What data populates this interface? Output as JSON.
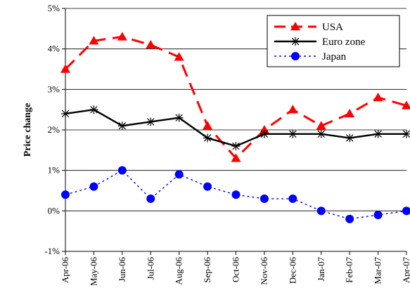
{
  "chart_data": {
    "type": "line",
    "ylabel": "Price change",
    "xlabel": "",
    "ylim": [
      -1,
      5
    ],
    "y_ticks": [
      "-1%",
      "0%",
      "1%",
      "2%",
      "3%",
      "4%",
      "5%"
    ],
    "categories": [
      "Apr-06",
      "May-06",
      "Jun-06",
      "Jul-06",
      "Aug-06",
      "Sep-06",
      "Oct-06",
      "Nov-06",
      "Dec-06",
      "Jan-07",
      "Feb-07",
      "Mar-07",
      "Apr-07"
    ],
    "grid": "horizontal",
    "legend_position": "top-right",
    "series": [
      {
        "name": "USA",
        "color": "#ff0000",
        "style": "dashed",
        "marker": "triangle",
        "values": [
          3.5,
          4.2,
          4.3,
          4.1,
          3.8,
          2.1,
          1.3,
          2.0,
          2.5,
          2.1,
          2.4,
          2.8,
          2.6
        ]
      },
      {
        "name": "Euro zone",
        "color": "#000000",
        "style": "solid",
        "marker": "asterisk",
        "values": [
          2.4,
          2.5,
          2.1,
          2.2,
          2.3,
          1.8,
          1.6,
          1.9,
          1.9,
          1.9,
          1.8,
          1.9,
          1.9
        ]
      },
      {
        "name": "Japan",
        "color": "#0000ff",
        "style": "dotted",
        "marker": "circle",
        "values": [
          0.4,
          0.6,
          1.0,
          0.3,
          0.9,
          0.6,
          0.4,
          0.3,
          0.3,
          0.0,
          -0.2,
          -0.1,
          0.0
        ]
      }
    ]
  }
}
